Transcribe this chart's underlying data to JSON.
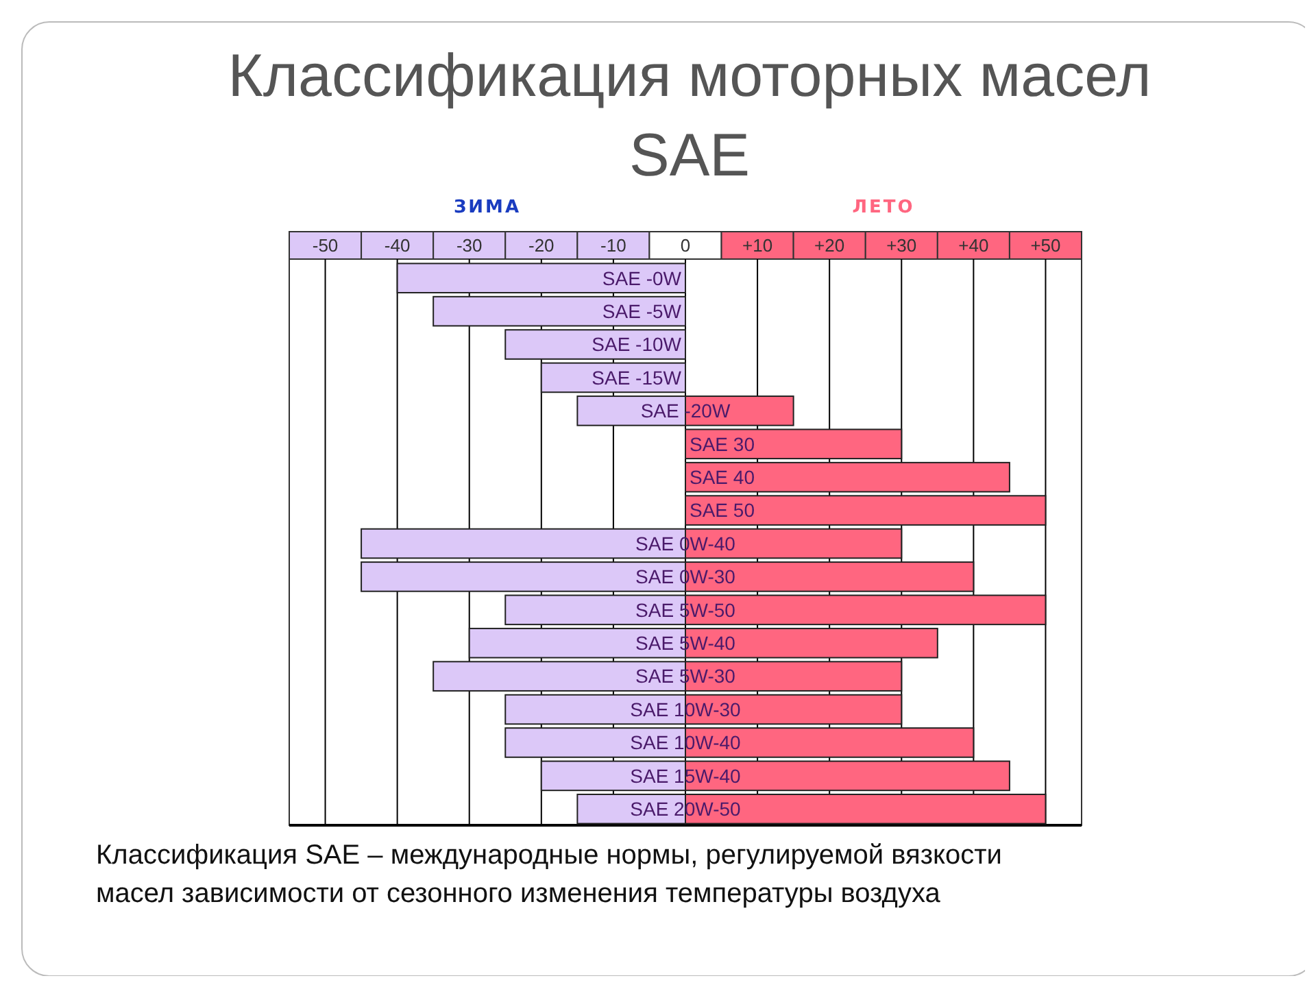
{
  "chart_data": {
    "type": "bar",
    "orientation": "horizontal",
    "stacked": true,
    "title": "Классификация моторных масел SAE",
    "categories": [
      "SAE -0W",
      "SAE -5W",
      "SAE -10W",
      "SAE -15W",
      "SAE -20W",
      "SAE 30",
      "SAE 40",
      "SAE 50",
      "SAE 0W-40",
      "SAE 0W-30",
      "SAE 5W-50",
      "SAE 5W-40",
      "SAE 5W-30",
      "SAE 10W-30",
      "SAE 10W-40",
      "SAE 15W-40",
      "SAE 20W-50"
    ],
    "series": [
      {
        "name": "ЗИМА",
        "color": "#dcc8f8",
        "values": [
          -40,
          -35,
          -25,
          -20,
          -15,
          null,
          null,
          null,
          -45,
          -45,
          -25,
          -30,
          -35,
          -25,
          -25,
          -20,
          -15
        ]
      },
      {
        "name": "ЛЕТО",
        "color": "#ff6680",
        "values": [
          null,
          null,
          null,
          null,
          15,
          30,
          45,
          50,
          30,
          40,
          50,
          35,
          30,
          30,
          40,
          45,
          50
        ]
      }
    ],
    "xlim": [
      -55,
      55
    ],
    "xticks": [
      -50,
      -40,
      -30,
      -20,
      -10,
      0,
      {
        "value": 10,
        "label": "+10"
      },
      {
        "value": 20,
        "label": "+20"
      },
      {
        "value": 30,
        "label": "+30"
      },
      {
        "value": 40,
        "label": "+40"
      },
      {
        "value": 50,
        "label": "+50"
      }
    ],
    "grid": "x",
    "legend": "top",
    "annotations": [
      "Классификация SAE – международные нормы, регулируемой вязкости масел зависимости от сезонного изменения температуры воздуха"
    ]
  }
}
